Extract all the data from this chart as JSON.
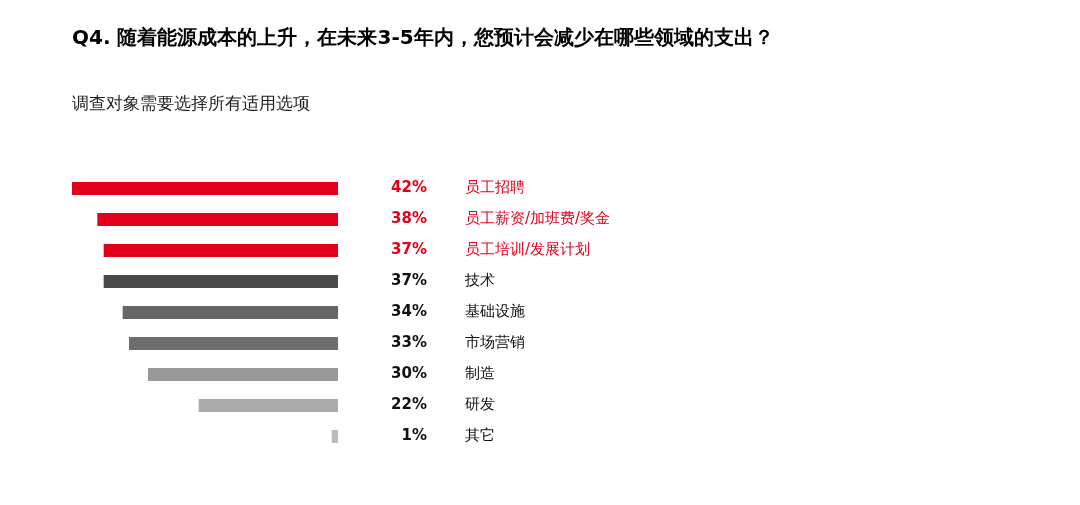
{
  "chart_data": {
    "type": "bar",
    "orientation": "horizontal",
    "title": "Q4. 随着能源成本的上升，在未来3-5年内，您预计会减少在哪些领域的支出？",
    "subtitle": "调查对象需要选择所有适用选项",
    "categories": [
      "员工招聘",
      "员工薪资/加班费/奖金",
      "员工培训/发展计划",
      "技术",
      "基础设施",
      "市场营销",
      "制造",
      "研发",
      "其它"
    ],
    "values": [
      42,
      38,
      37,
      37,
      34,
      33,
      30,
      22,
      1
    ],
    "value_labels": [
      "42%",
      "38%",
      "37%",
      "37%",
      "34%",
      "33%",
      "30%",
      "22%",
      "1%"
    ],
    "colors": [
      "#e2001a",
      "#e2001a",
      "#e2001a",
      "#4a4a4a",
      "#666666",
      "#6e6e6e",
      "#999999",
      "#aaaaaa",
      "#bbbbbb"
    ],
    "xlim": [
      42,
      0
    ]
  }
}
